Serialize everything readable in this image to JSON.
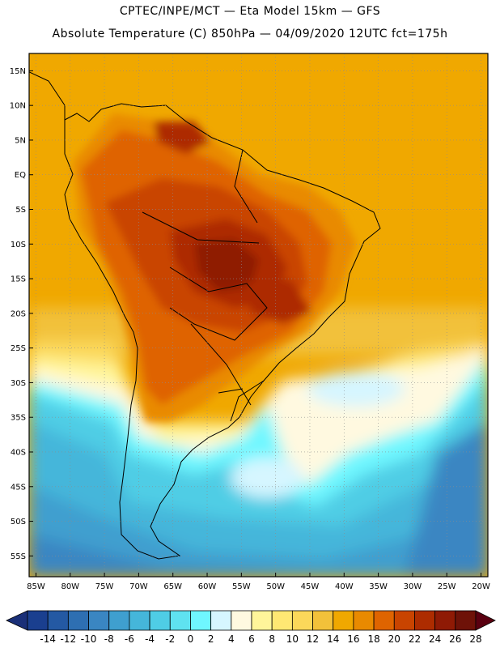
{
  "header": {
    "line1": "CPTEC/INPE/MCT —  Eta Model 15km — GFS",
    "line2": "Absolute Temperature (C) 850hPa — 04/09/2020 12UTC fct=175h"
  },
  "map": {
    "lat_labels": [
      "15N",
      "10N",
      "5N",
      "EQ",
      "5S",
      "10S",
      "15S",
      "20S",
      "25S",
      "30S",
      "35S",
      "40S",
      "45S",
      "50S",
      "55S"
    ],
    "lon_labels": [
      "85W",
      "80W",
      "75W",
      "70W",
      "65W",
      "60W",
      "55W",
      "50W",
      "45W",
      "40W",
      "35W",
      "30W",
      "25W",
      "20W"
    ]
  },
  "colorbar": {
    "labels": [
      "-14",
      "-12",
      "-10",
      "-8",
      "-6",
      "-4",
      "-2",
      "0",
      "2",
      "4",
      "6",
      "8",
      "10",
      "12",
      "14",
      "16",
      "18",
      "20",
      "22",
      "24",
      "26",
      "28"
    ],
    "colors": [
      "#1a3f8f",
      "#2459a3",
      "#2e6fb2",
      "#3a86c2",
      "#3f9fcf",
      "#45b6da",
      "#4fcde5",
      "#5fe2f0",
      "#6ff7ff",
      "#d6f6ff",
      "#fff9e0",
      "#fff59a",
      "#ffe873",
      "#fbd85a",
      "#f2c13a",
      "#f0a800",
      "#e98a00",
      "#df6400",
      "#c94400",
      "#ad2c00",
      "#8f1a05",
      "#6e1208"
    ],
    "low_arrow_color": "#1a2f78",
    "high_arrow_color": "#5a0010"
  }
}
